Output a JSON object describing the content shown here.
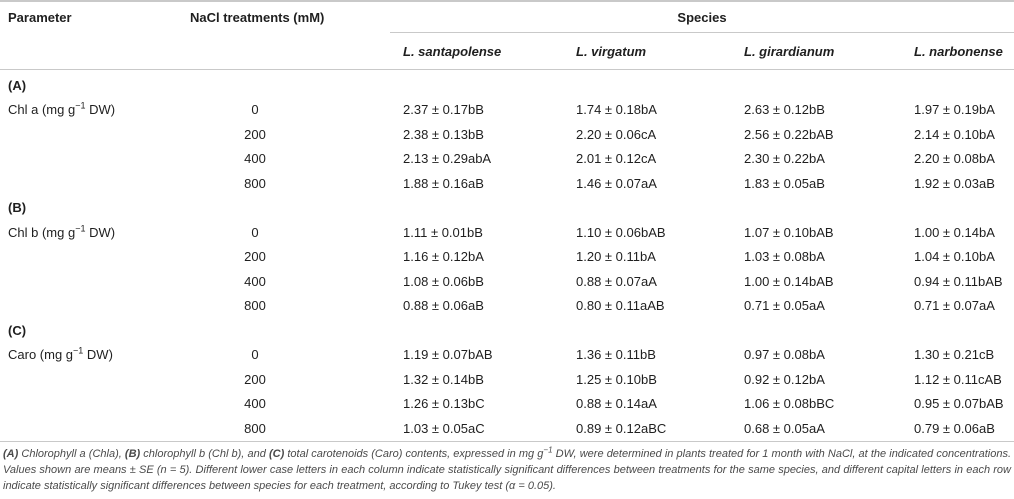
{
  "colors": {
    "rule": "#c9c9c9",
    "text": "#1f1f1f",
    "footnote": "#4a4a4a"
  },
  "table": {
    "headers": {
      "parameter": "Parameter",
      "treatments": "NaCl treatments (mM)",
      "species_group": "Species",
      "species": [
        "L. santapolense",
        "L. virgatum",
        "L. girardianum",
        "L. narbonense"
      ]
    },
    "sections": [
      {
        "label": "(A)",
        "parameter": {
          "prefix": "Chl a (mg g",
          "sup": "−1",
          "suffix": " DW)"
        },
        "rows": [
          {
            "treatment": "0",
            "values": [
              "2.37 ± 0.17bB",
              "1.74 ± 0.18bA",
              "2.63 ± 0.12bB",
              "1.97 ± 0.19bA"
            ]
          },
          {
            "treatment": "200",
            "values": [
              "2.38 ± 0.13bB",
              "2.20 ± 0.06cA",
              "2.56 ± 0.22bAB",
              "2.14 ± 0.10bA"
            ]
          },
          {
            "treatment": "400",
            "values": [
              "2.13 ± 0.29abA",
              "2.01 ± 0.12cA",
              "2.30 ± 0.22bA",
              "2.20 ± 0.08bA"
            ]
          },
          {
            "treatment": "800",
            "values": [
              "1.88 ± 0.16aB",
              "1.46 ± 0.07aA",
              "1.83 ± 0.05aB",
              "1.92 ± 0.03aB"
            ]
          }
        ]
      },
      {
        "label": "(B)",
        "parameter": {
          "prefix": "Chl b (mg g",
          "sup": "−1",
          "suffix": " DW)"
        },
        "rows": [
          {
            "treatment": "0",
            "values": [
              "1.11 ± 0.01bB",
              "1.10 ± 0.06bAB",
              "1.07 ± 0.10bAB",
              "1.00 ± 0.14bA"
            ]
          },
          {
            "treatment": "200",
            "values": [
              "1.16 ± 0.12bA",
              "1.20 ± 0.11bA",
              "1.03 ± 0.08bA",
              "1.04 ± 0.10bA"
            ]
          },
          {
            "treatment": "400",
            "values": [
              "1.08 ± 0.06bB",
              "0.88 ± 0.07aA",
              "1.00 ± 0.14bAB",
              "0.94 ± 0.11bAB"
            ]
          },
          {
            "treatment": "800",
            "values": [
              "0.88 ± 0.06aB",
              "0.80 ± 0.11aAB",
              "0.71 ± 0.05aA",
              "0.71 ± 0.07aA"
            ]
          }
        ]
      },
      {
        "label": "(C)",
        "parameter": {
          "prefix": "Caro (mg g",
          "sup": "−1",
          "suffix": " DW)"
        },
        "rows": [
          {
            "treatment": "0",
            "values": [
              "1.19 ± 0.07bAB",
              "1.36 ± 0.11bB",
              "0.97 ± 0.08bA",
              "1.30 ± 0.21cB"
            ]
          },
          {
            "treatment": "200",
            "values": [
              "1.32 ± 0.14bB",
              "1.25 ± 0.10bB",
              "0.92 ± 0.12bA",
              "1.12 ± 0.11cAB"
            ]
          },
          {
            "treatment": "400",
            "values": [
              "1.26 ± 0.13bC",
              "0.88 ± 0.14aA",
              "1.06 ± 0.08bBC",
              "0.95 ± 0.07bAB"
            ]
          },
          {
            "treatment": "800",
            "values": [
              "1.03 ± 0.05aC",
              "0.89 ± 0.12aBC",
              "0.68 ± 0.05aA",
              "0.79 ± 0.06aB"
            ]
          }
        ]
      }
    ]
  },
  "footnote": {
    "a_label": "(A)",
    "a_text": " Chlorophyll a (Chla), ",
    "b_label": "(B)",
    "b_text": " chlorophyll b (Chl b), and ",
    "c_label": "(C)",
    "c_text": " total carotenoids (Caro) contents, expressed in mg g",
    "sup": "−1",
    "rest": " DW, were determined in plants treated for 1 month with NaCl, at the indicated concentrations. Values shown are means ± SE (n = 5). Different lower case letters in each column indicate statistically significant differences between treatments for the same species, and different capital letters in each row indicate statistically significant differences between species for each treatment, according to Tukey test (α = 0.05)."
  }
}
